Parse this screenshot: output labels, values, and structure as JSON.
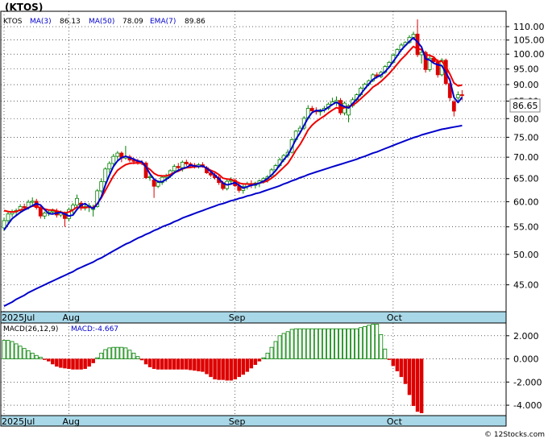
{
  "ticker": "(KTOS)",
  "legend_main": {
    "symbol": "KTOS",
    "items": [
      {
        "label": "MA(3)",
        "value": "86.13",
        "color": "#0000cc"
      },
      {
        "label": "MA(50)",
        "value": "78.09",
        "color": "#0000cc"
      },
      {
        "label": "EMA(7)",
        "value": "89.86",
        "color": "#0000cc"
      }
    ]
  },
  "legend_macd": {
    "label": "MACD(26,12,9)",
    "value_label": "MACD:-4.667"
  },
  "last_price": "86.65",
  "watermark": "© 12Stocks.com",
  "colors": {
    "up": "#008000",
    "down": "#dd0000",
    "ma3": "#0000cc",
    "ma50": "#0000cc",
    "ema7": "#ee0000",
    "axis_bar": "#a8d8e8",
    "grid": "#000000",
    "frame": "#000000"
  },
  "chart_data": [
    {
      "type": "candlestick",
      "title": "(KTOS)",
      "y_scale": "log",
      "ylim": [
        41,
        116
      ],
      "y_ticks": [
        110,
        105,
        100,
        95,
        90,
        85,
        80,
        75,
        70,
        65,
        60,
        55,
        50,
        45
      ],
      "y_tick_labels": [
        "110.00",
        "105.00",
        "100.00",
        "95.00",
        "90.00",
        "85.00",
        "80.00",
        "75.00",
        "70.00",
        "65.00",
        "60.00",
        "55.00",
        "50.00",
        "45.00"
      ],
      "x_labels": [
        {
          "label": "2025Jul",
          "index": 0
        },
        {
          "label": "Aug",
          "index": 16
        },
        {
          "label": "Sep",
          "index": 57
        },
        {
          "label": "Oct",
          "index": 96
        }
      ],
      "grid": true,
      "candles": [
        [
          54.8,
          56.8,
          54.2,
          56.2
        ],
        [
          56.2,
          57.9,
          55.6,
          57.5
        ],
        [
          57.5,
          58.4,
          56.9,
          57.9
        ],
        [
          57.9,
          58.6,
          57.3,
          58.2
        ],
        [
          58.2,
          59.5,
          57.8,
          59.0
        ],
        [
          59.0,
          59.6,
          58.2,
          58.8
        ],
        [
          58.8,
          60.4,
          58.4,
          59.9
        ],
        [
          59.9,
          60.9,
          59.0,
          60.1
        ],
        [
          60.1,
          60.6,
          58.4,
          58.8
        ],
        [
          58.8,
          59.2,
          56.6,
          57.1
        ],
        [
          57.1,
          58.0,
          56.5,
          57.7
        ],
        [
          57.7,
          58.4,
          57.1,
          57.9
        ],
        [
          57.9,
          58.6,
          57.4,
          58.1
        ],
        [
          58.1,
          58.6,
          56.8,
          57.3
        ],
        [
          57.3,
          58.2,
          56.9,
          57.7
        ],
        [
          57.7,
          58.0,
          55.0,
          56.6
        ],
        [
          56.6,
          58.8,
          56.1,
          58.4
        ],
        [
          58.4,
          59.7,
          57.6,
          59.3
        ],
        [
          59.3,
          61.5,
          59.0,
          60.7
        ],
        [
          59.7,
          60.1,
          58.2,
          58.7
        ],
        [
          58.7,
          59.6,
          58.2,
          59.0
        ],
        [
          59.0,
          59.7,
          57.9,
          59.2
        ],
        [
          58.4,
          59.4,
          57.0,
          58.9
        ],
        [
          59.0,
          62.7,
          58.8,
          62.3
        ],
        [
          62.3,
          65.0,
          61.9,
          64.3
        ],
        [
          64.3,
          67.6,
          63.4,
          67.2
        ],
        [
          67.2,
          69.0,
          66.3,
          68.5
        ],
        [
          68.5,
          70.8,
          67.9,
          70.2
        ],
        [
          70.2,
          71.5,
          69.3,
          71.0
        ],
        [
          71.0,
          71.4,
          68.8,
          69.8
        ],
        [
          69.8,
          72.8,
          69.4,
          70.1
        ],
        [
          70.1,
          70.6,
          68.8,
          69.3
        ],
        [
          69.3,
          69.9,
          68.3,
          69.0
        ],
        [
          69.0,
          69.6,
          68.2,
          68.7
        ],
        [
          68.7,
          69.3,
          68.1,
          68.6
        ],
        [
          68.6,
          69.0,
          64.9,
          65.2
        ],
        [
          65.2,
          66.0,
          64.5,
          65.4
        ],
        [
          64.7,
          65.0,
          60.8,
          63.3
        ],
        [
          63.3,
          64.6,
          62.9,
          64.1
        ],
        [
          64.1,
          65.6,
          63.6,
          65.3
        ],
        [
          65.3,
          66.1,
          64.3,
          65.6
        ],
        [
          65.6,
          67.1,
          65.1,
          66.8
        ],
        [
          66.8,
          68.3,
          66.3,
          67.8
        ],
        [
          67.8,
          68.6,
          66.9,
          67.5
        ],
        [
          67.5,
          69.2,
          66.6,
          68.8
        ],
        [
          68.8,
          69.4,
          67.9,
          68.4
        ],
        [
          68.4,
          68.8,
          67.4,
          68.1
        ],
        [
          68.1,
          68.6,
          67.3,
          67.9
        ],
        [
          67.9,
          68.6,
          67.3,
          68.2
        ],
        [
          68.2,
          68.8,
          67.5,
          67.9
        ],
        [
          67.5,
          67.9,
          66.1,
          66.3
        ],
        [
          66.3,
          67.0,
          65.4,
          65.8
        ],
        [
          65.8,
          66.6,
          64.8,
          65.2
        ],
        [
          65.2,
          65.8,
          63.6,
          64.1
        ],
        [
          64.1,
          64.5,
          62.4,
          62.8
        ],
        [
          62.8,
          64.9,
          62.4,
          64.4
        ],
        [
          64.4,
          65.3,
          63.6,
          64.6
        ],
        [
          64.6,
          65.1,
          63.1,
          63.4
        ],
        [
          63.4,
          64.3,
          61.9,
          62.4
        ],
        [
          62.4,
          63.6,
          61.7,
          63.2
        ],
        [
          63.2,
          64.3,
          62.6,
          63.9
        ],
        [
          63.9,
          64.6,
          62.9,
          63.5
        ],
        [
          63.5,
          64.3,
          62.8,
          64.0
        ],
        [
          64.0,
          64.8,
          63.1,
          64.5
        ],
        [
          64.5,
          65.3,
          63.9,
          65.0
        ],
        [
          65.0,
          65.8,
          64.1,
          65.4
        ],
        [
          65.4,
          67.4,
          65.0,
          67.0
        ],
        [
          67.0,
          68.4,
          66.6,
          68.0
        ],
        [
          68.0,
          69.9,
          67.6,
          69.4
        ],
        [
          69.4,
          70.8,
          68.8,
          70.4
        ],
        [
          70.4,
          71.9,
          69.9,
          71.2
        ],
        [
          71.2,
          74.8,
          70.9,
          74.4
        ],
        [
          74.4,
          76.9,
          73.9,
          76.6
        ],
        [
          76.6,
          78.1,
          76.1,
          77.4
        ],
        [
          77.4,
          80.7,
          76.9,
          80.1
        ],
        [
          80.1,
          83.8,
          79.7,
          82.9
        ],
        [
          82.9,
          83.6,
          81.6,
          82.2
        ],
        [
          82.2,
          83.2,
          81.1,
          81.9
        ],
        [
          81.9,
          82.8,
          80.8,
          82.4
        ],
        [
          82.4,
          83.6,
          81.7,
          82.9
        ],
        [
          82.9,
          84.6,
          82.4,
          84.1
        ],
        [
          84.1,
          86.0,
          83.8,
          84.8
        ],
        [
          84.8,
          86.4,
          83.6,
          85.2
        ],
        [
          85.2,
          85.9,
          81.0,
          81.6
        ],
        [
          81.6,
          84.9,
          80.9,
          84.4
        ],
        [
          81.0,
          84.1,
          79.0,
          83.7
        ],
        [
          83.7,
          86.1,
          83.1,
          85.4
        ],
        [
          85.4,
          87.3,
          84.9,
          86.9
        ],
        [
          86.9,
          89.4,
          86.4,
          88.9
        ],
        [
          88.9,
          90.6,
          88.3,
          90.1
        ],
        [
          90.1,
          91.6,
          89.5,
          91.2
        ],
        [
          91.2,
          93.6,
          90.8,
          93.1
        ],
        [
          93.1,
          93.9,
          91.9,
          92.5
        ],
        [
          92.5,
          94.4,
          92.0,
          93.9
        ],
        [
          93.9,
          96.3,
          93.4,
          95.8
        ],
        [
          95.8,
          97.7,
          95.4,
          97.2
        ],
        [
          97.2,
          100.2,
          96.9,
          99.6
        ],
        [
          99.6,
          102.1,
          99.3,
          101.6
        ],
        [
          101.6,
          103.9,
          100.9,
          103.2
        ],
        [
          103.2,
          104.6,
          102.7,
          104.1
        ],
        [
          104.1,
          106.8,
          103.7,
          106.0
        ],
        [
          106.0,
          108.1,
          105.4,
          107.1
        ],
        [
          107.2,
          112.8,
          99.0,
          99.8
        ],
        [
          99.8,
          101.6,
          96.8,
          100.6
        ],
        [
          100.6,
          101.2,
          93.8,
          94.8
        ],
        [
          94.8,
          99.4,
          94.1,
          98.6
        ],
        [
          98.6,
          99.3,
          96.9,
          97.4
        ],
        [
          97.4,
          98.3,
          92.2,
          93.1
        ],
        [
          93.1,
          98.6,
          92.6,
          97.9
        ],
        [
          97.9,
          98.5,
          89.8,
          90.3
        ],
        [
          90.3,
          92.0,
          85.1,
          86.0
        ],
        [
          84.8,
          85.4,
          80.6,
          82.1
        ],
        [
          86.0,
          87.9,
          85.1,
          86.9
        ],
        [
          86.9,
          88.3,
          85.3,
          86.65
        ]
      ],
      "series": [
        {
          "name": "MA(3)",
          "values": [
            54.4,
            55.5,
            56.6,
            57.2,
            57.8,
            58.3,
            58.7,
            59.2,
            59.6,
            59.3,
            58.4,
            57.6,
            57.5,
            57.7,
            57.8,
            57.5,
            57.1,
            57.3,
            58.4,
            59.3,
            59.6,
            59.0,
            58.6,
            59.5,
            61.0,
            63.6,
            65.8,
            67.8,
            69.1,
            69.9,
            70.2,
            69.9,
            69.5,
            69.1,
            68.9,
            67.7,
            66.1,
            64.9,
            64.3,
            64.3,
            64.8,
            65.5,
            66.3,
            66.9,
            67.3,
            67.6,
            68.1,
            67.9,
            67.8,
            67.9,
            67.4,
            66.6,
            65.8,
            65.0,
            64.0,
            63.6,
            63.8,
            64.1,
            63.5,
            62.9,
            63.2,
            63.5,
            63.7,
            64.0,
            64.4,
            65.0,
            65.8,
            66.8,
            68.1,
            69.4,
            70.5,
            72.3,
            74.5,
            76.1,
            78.1,
            80.2,
            81.7,
            82.3,
            82.2,
            82.4,
            83.2,
            84.0,
            84.7,
            83.9,
            83.4,
            83.0,
            84.3,
            85.5,
            87.1,
            88.7,
            90.2,
            91.6,
            92.4,
            93.0,
            94.1,
            95.6,
            97.5,
            99.4,
            101.5,
            103.0,
            104.5,
            105.8,
            104.3,
            102.5,
            98.4,
            98.0,
            96.9,
            96.4,
            96.1,
            93.8,
            91.4,
            86.1,
            84.6,
            86.13
          ]
        },
        {
          "name": "EMA(7)",
          "values": [
            58.2,
            58.0,
            57.9,
            58.0,
            58.3,
            58.5,
            58.8,
            59.1,
            59.1,
            58.7,
            58.5,
            58.3,
            58.3,
            58.1,
            57.9,
            57.7,
            57.9,
            58.3,
            58.9,
            58.8,
            58.8,
            58.9,
            58.8,
            59.6,
            60.8,
            62.4,
            64.0,
            65.6,
            66.9,
            67.6,
            68.2,
            68.5,
            68.6,
            68.6,
            68.6,
            67.7,
            67.1,
            66.2,
            65.7,
            65.6,
            65.6,
            65.9,
            66.4,
            66.7,
            67.2,
            67.5,
            67.6,
            67.7,
            67.8,
            67.8,
            67.4,
            66.9,
            66.5,
            65.9,
            65.1,
            64.9,
            64.8,
            64.5,
            64.0,
            63.8,
            63.8,
            63.7,
            63.8,
            64.0,
            64.2,
            64.5,
            65.1,
            65.8,
            66.7,
            67.6,
            68.5,
            70.0,
            71.7,
            73.1,
            74.9,
            76.9,
            78.2,
            79.2,
            80.0,
            80.7,
            81.6,
            82.4,
            83.1,
            82.7,
            83.1,
            83.3,
            83.8,
            84.6,
            85.7,
            86.8,
            87.9,
            89.2,
            90.0,
            91.0,
            92.2,
            93.5,
            95.0,
            96.6,
            98.2,
            99.6,
            101.2,
            102.7,
            101.9,
            101.6,
            99.9,
            99.6,
            99.0,
            97.5,
            97.6,
            95.8,
            93.3,
            90.5,
            89.6,
            89.86
          ]
        },
        {
          "name": "MA(50)",
          "values": [
            41.8,
            42.1,
            42.4,
            42.8,
            43.1,
            43.4,
            43.8,
            44.1,
            44.4,
            44.7,
            45.0,
            45.3,
            45.6,
            45.9,
            46.2,
            46.5,
            46.8,
            47.1,
            47.5,
            47.8,
            48.1,
            48.4,
            48.7,
            49.1,
            49.4,
            49.8,
            50.2,
            50.6,
            51.0,
            51.4,
            51.8,
            52.1,
            52.5,
            52.9,
            53.2,
            53.6,
            53.9,
            54.3,
            54.6,
            55.0,
            55.3,
            55.6,
            56.0,
            56.3,
            56.7,
            57.0,
            57.3,
            57.6,
            57.9,
            58.2,
            58.5,
            58.8,
            59.1,
            59.4,
            59.6,
            59.9,
            60.2,
            60.4,
            60.7,
            60.9,
            61.2,
            61.4,
            61.7,
            61.9,
            62.2,
            62.5,
            62.8,
            63.1,
            63.4,
            63.8,
            64.1,
            64.5,
            64.8,
            65.2,
            65.5,
            65.9,
            66.2,
            66.5,
            66.8,
            67.1,
            67.4,
            67.7,
            68.0,
            68.3,
            68.6,
            68.9,
            69.2,
            69.5,
            69.9,
            70.2,
            70.6,
            71.0,
            71.3,
            71.7,
            72.1,
            72.5,
            72.9,
            73.3,
            73.7,
            74.1,
            74.5,
            74.9,
            75.2,
            75.6,
            75.9,
            76.2,
            76.5,
            76.8,
            77.1,
            77.3,
            77.5,
            77.7,
            77.9,
            78.09
          ]
        }
      ]
    },
    {
      "type": "bar",
      "title": "MACD(26,12,9)",
      "ylim": [
        -4.9,
        3.1
      ],
      "y_ticks": [
        2,
        0,
        -2,
        -4
      ],
      "y_tick_labels": [
        "2.000",
        "0.000",
        "-2.000",
        "-4.000"
      ],
      "x_labels": [
        {
          "label": "2025Jul",
          "index": 0
        },
        {
          "label": "Aug",
          "index": 16
        },
        {
          "label": "Sep",
          "index": 57
        },
        {
          "label": "Oct",
          "index": 96
        }
      ],
      "grid": true,
      "values": [
        1.6,
        1.6,
        1.5,
        1.3,
        1.1,
        0.9,
        0.7,
        0.5,
        0.3,
        0.15,
        -0.05,
        -0.2,
        -0.45,
        -0.65,
        -0.75,
        -0.8,
        -0.85,
        -0.9,
        -0.9,
        -0.9,
        -0.85,
        -0.65,
        -0.35,
        0.1,
        0.5,
        0.8,
        0.95,
        1.0,
        1.0,
        1.0,
        0.95,
        0.75,
        0.5,
        0.2,
        -0.1,
        -0.45,
        -0.7,
        -0.85,
        -0.9,
        -0.9,
        -0.9,
        -0.9,
        -0.9,
        -0.9,
        -0.9,
        -0.9,
        -0.95,
        -1.0,
        -1.05,
        -1.1,
        -1.3,
        -1.55,
        -1.75,
        -1.8,
        -1.8,
        -1.85,
        -1.85,
        -1.75,
        -1.55,
        -1.35,
        -1.1,
        -0.8,
        -0.5,
        -0.2,
        0.1,
        0.5,
        1.0,
        1.5,
        2.0,
        2.2,
        2.35,
        2.55,
        2.6,
        2.6,
        2.6,
        2.6,
        2.6,
        2.6,
        2.6,
        2.6,
        2.6,
        2.6,
        2.6,
        2.6,
        2.6,
        2.6,
        2.6,
        2.6,
        2.7,
        2.8,
        2.9,
        3.0,
        3.0,
        2.1,
        0.85,
        -0.05,
        -0.6,
        -1.05,
        -1.55,
        -2.15,
        -3.1,
        -4.05,
        -4.55,
        -4.667
      ]
    }
  ]
}
